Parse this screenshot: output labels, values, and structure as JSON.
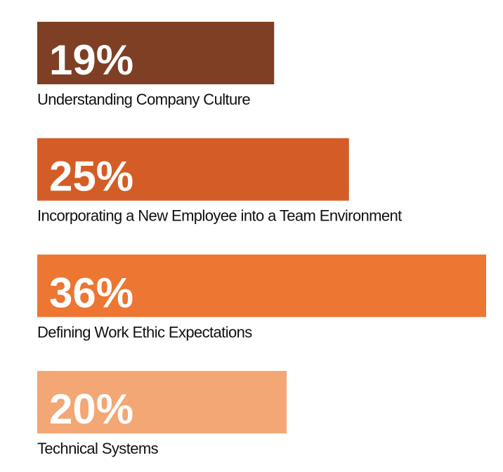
{
  "chart_data": {
    "type": "bar",
    "orientation": "horizontal",
    "categories": [
      "Understanding Company Culture",
      "Incorporating a New Employee into a Team Environment",
      "Defining Work Ethic Expectations",
      "Technical Systems"
    ],
    "values": [
      19,
      25,
      36,
      20
    ],
    "value_labels": [
      "19%",
      "25%",
      "36%",
      "20%"
    ],
    "colors": [
      "#7f3f24",
      "#d45d27",
      "#ec7632",
      "#f2a774"
    ]
  }
}
